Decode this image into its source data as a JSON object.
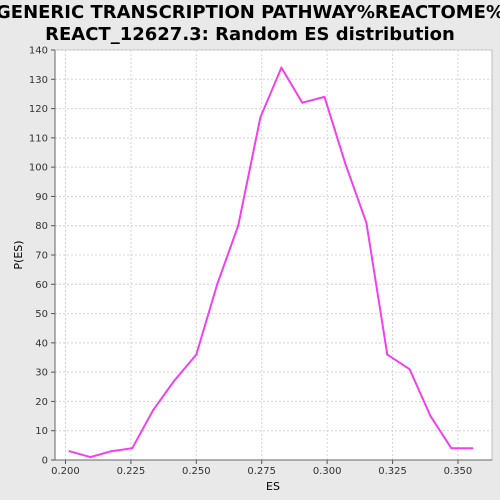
{
  "chart_data": {
    "type": "line",
    "title_lines": [
      "GENERIC TRANSCRIPTION PATHWAY%REACTOME%",
      "REACT_12627.3: Random ES distribution"
    ],
    "xlabel": "ES",
    "ylabel": "P(ES)",
    "xlim": [
      0.196,
      0.363
    ],
    "ylim": [
      0,
      140
    ],
    "xticks": [
      0.2,
      0.225,
      0.25,
      0.275,
      0.3,
      0.325,
      0.35
    ],
    "xtick_labels": [
      "0.200",
      "0.225",
      "0.250",
      "0.275",
      "0.300",
      "0.325",
      "0.350"
    ],
    "yticks": [
      0,
      10,
      20,
      30,
      40,
      50,
      60,
      70,
      80,
      90,
      100,
      110,
      120,
      130,
      140
    ],
    "grid": true,
    "series": [
      {
        "color": "#f040f0",
        "x": [
          0.2015,
          0.2095,
          0.2175,
          0.2255,
          0.2335,
          0.2415,
          0.25,
          0.258,
          0.266,
          0.2745,
          0.2825,
          0.2905,
          0.299,
          0.307,
          0.315,
          0.323,
          0.3315,
          0.3395,
          0.3475,
          0.3555
        ],
        "y": [
          3,
          1,
          3,
          4,
          17,
          27,
          36,
          60,
          80,
          117,
          134,
          122,
          124,
          101,
          81,
          36,
          31,
          15,
          4,
          4
        ]
      }
    ]
  }
}
